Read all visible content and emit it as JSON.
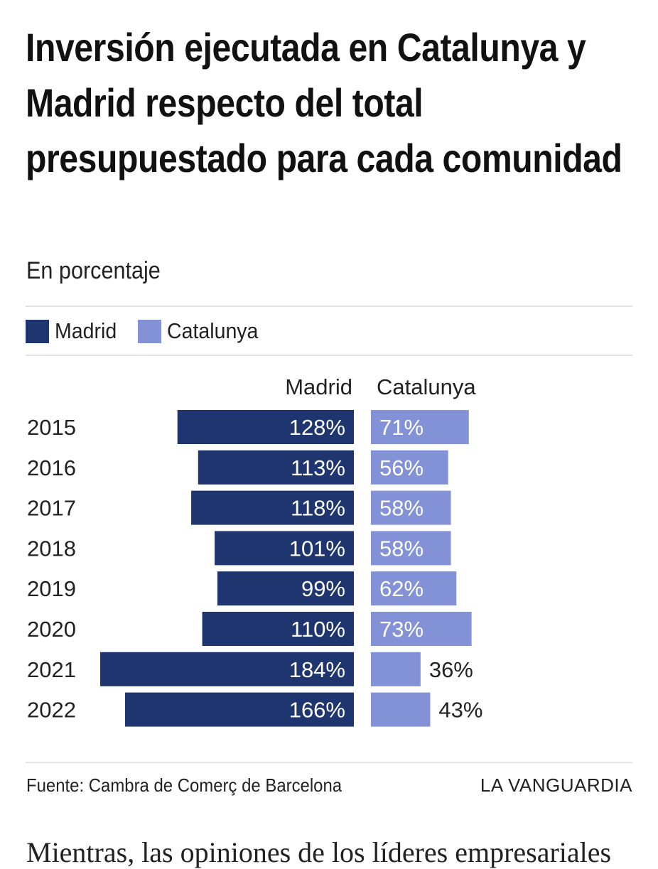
{
  "title": "Inversión ejecutada en Catalunya y Madrid respecto del total presupuestado para cada comunidad",
  "subtitle": "En porcentaje",
  "legend": [
    {
      "label": "Madrid",
      "color": "#1e3570"
    },
    {
      "label": "Catalunya",
      "color": "#8392d6"
    }
  ],
  "chart_data": {
    "type": "bar",
    "orientation": "horizontal-diverging",
    "categories": [
      "2015",
      "2016",
      "2017",
      "2018",
      "2019",
      "2020",
      "2021",
      "2022"
    ],
    "column_headers": [
      "Madrid",
      "Catalunya"
    ],
    "series": [
      {
        "name": "Madrid",
        "values": [
          128,
          113,
          118,
          101,
          99,
          110,
          184,
          166
        ],
        "color": "#1e3570"
      },
      {
        "name": "Catalunya",
        "values": [
          71,
          56,
          58,
          58,
          62,
          73,
          36,
          43
        ],
        "color": "#8392d6"
      }
    ],
    "value_suffix": "%",
    "grid": false
  },
  "footer": {
    "source": "Fuente: Cambra de Comerç de Barcelona",
    "brand": "LA VANGUARDIA"
  },
  "article_snippet": "Mientras, las opiniones de los líderes empresariales"
}
